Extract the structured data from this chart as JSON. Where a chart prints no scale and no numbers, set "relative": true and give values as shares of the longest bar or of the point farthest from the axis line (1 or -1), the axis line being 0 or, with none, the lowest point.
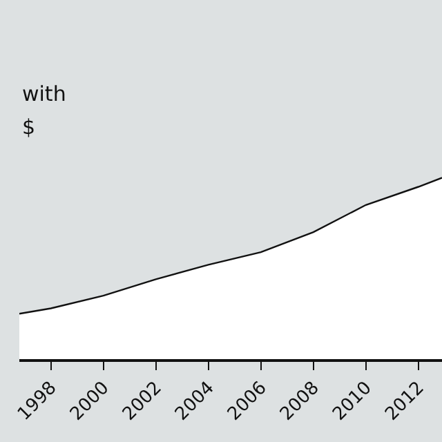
{
  "chart_data": {
    "type": "area",
    "relative": true,
    "x": [
      1996.8,
      1998,
      2000,
      2002,
      2004,
      2006,
      2008,
      2010,
      2012,
      2012.9
    ],
    "series": [
      {
        "color": "#ffffff",
        "values": [
          0.25,
          0.28,
          0.35,
          0.44,
          0.52,
          0.59,
          0.7,
          0.85,
          0.95,
          1.0
        ]
      }
    ],
    "xlim": [
      1996.8,
      2012.9
    ],
    "xticks": [
      1998,
      2000,
      2002,
      2004,
      2006,
      2008,
      2010,
      2012
    ],
    "annotations": [
      "with",
      "$"
    ],
    "grid": false,
    "legend": false
  }
}
